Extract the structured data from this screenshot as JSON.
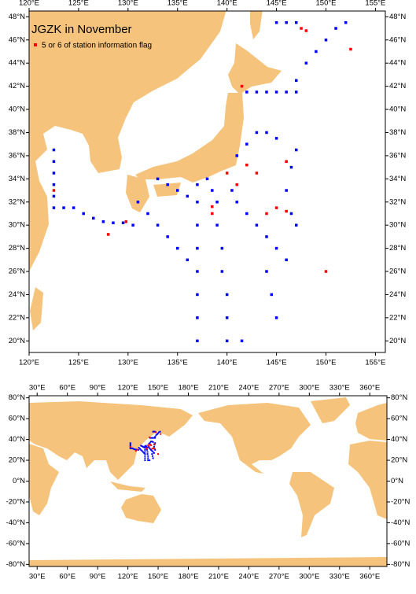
{
  "chart_data": [
    {
      "type": "scatter",
      "title": "JGZK in November",
      "land_color": "#f5c37b",
      "xlim": [
        120,
        156
      ],
      "ylim": [
        19,
        48.5
      ],
      "xticks": [
        {
          "value": 120,
          "label": "120°E"
        },
        {
          "value": 125,
          "label": "125°E"
        },
        {
          "value": 130,
          "label": "130°E"
        },
        {
          "value": 135,
          "label": "135°E"
        },
        {
          "value": 140,
          "label": "140°E"
        },
        {
          "value": 145,
          "label": "145°E"
        },
        {
          "value": 150,
          "label": "150°E"
        },
        {
          "value": 155,
          "label": "155°E"
        }
      ],
      "yticks": [
        {
          "value": 20,
          "label": "20°N"
        },
        {
          "value": 22,
          "label": "22°N"
        },
        {
          "value": 24,
          "label": "24°N"
        },
        {
          "value": 26,
          "label": "26°N"
        },
        {
          "value": 28,
          "label": "28°N"
        },
        {
          "value": 30,
          "label": "30°N"
        },
        {
          "value": 32,
          "label": "32°N"
        },
        {
          "value": 34,
          "label": "34°N"
        },
        {
          "value": 36,
          "label": "36°N"
        },
        {
          "value": 38,
          "label": "38°N"
        },
        {
          "value": 40,
          "label": "40°N"
        },
        {
          "value": 42,
          "label": "42°N"
        },
        {
          "value": 44,
          "label": "44°N"
        },
        {
          "value": 46,
          "label": "46°N"
        },
        {
          "value": 48,
          "label": "48°N"
        }
      ],
      "series": [
        {
          "color": "#0000ff",
          "x": [
            122.5,
            122.5,
            122.5,
            122.5,
            122.5,
            122.5,
            123.5,
            124.5,
            125.5,
            126.5,
            127.5,
            128.5,
            129.5,
            130.5,
            137,
            137,
            137,
            137,
            137,
            137,
            137,
            137,
            138,
            138.5,
            139,
            139,
            139.5,
            139.5,
            140,
            140,
            140,
            140.5,
            141,
            142,
            143,
            144,
            145,
            146,
            147,
            146.5,
            146,
            146.5,
            147,
            142,
            143,
            144,
            145,
            146,
            147,
            147,
            148,
            149,
            150,
            151,
            152,
            131,
            132,
            133,
            134,
            135,
            136,
            133,
            134,
            135,
            136,
            141,
            142,
            143,
            144,
            145,
            145,
            146,
            147,
            144,
            144.5,
            145,
            141.5
          ],
          "y": [
            36.5,
            35.5,
            34.5,
            33.5,
            32.5,
            31.5,
            31.5,
            31.5,
            31,
            30.6,
            30.3,
            30.2,
            30.2,
            30,
            33.5,
            32,
            30,
            28,
            26,
            24,
            22,
            20,
            34,
            33,
            32,
            30,
            28,
            26,
            24,
            22,
            20,
            33,
            32,
            31,
            30,
            29,
            28,
            27,
            36.5,
            35,
            33,
            31,
            30,
            41.5,
            41.5,
            41.5,
            41.5,
            41.5,
            41.5,
            42.5,
            44,
            45,
            46,
            47,
            47.5,
            32,
            31,
            30,
            29,
            28,
            27,
            34,
            33.5,
            33,
            32.5,
            36,
            37,
            38,
            38,
            37.5,
            47.5,
            47.5,
            47.5,
            26,
            24,
            22,
            20
          ]
        },
        {
          "name": "5 or 6 of station information flag",
          "color": "#ff0000",
          "x": [
            122.5,
            128,
            129.8,
            138.5,
            138.5,
            140,
            141,
            143,
            144,
            145,
            146,
            146,
            150,
            152.5,
            147.5,
            148,
            141.5,
            142
          ],
          "y": [
            33,
            29.2,
            30.3,
            31,
            31.6,
            34.5,
            33.5,
            34.5,
            31,
            31.5,
            35.5,
            31.2,
            26,
            45.2,
            47,
            46.8,
            42,
            35.2
          ]
        }
      ]
    },
    {
      "type": "scatter",
      "land_color": "#f5c37b",
      "xlim": [
        22,
        377
      ],
      "ylim": [
        -82,
        82
      ],
      "xticks": [
        {
          "value": 30,
          "label": "30°E"
        },
        {
          "value": 60,
          "label": "60°E"
        },
        {
          "value": 90,
          "label": "90°E"
        },
        {
          "value": 120,
          "label": "120°E"
        },
        {
          "value": 150,
          "label": "150°E"
        },
        {
          "value": 180,
          "label": "180°E"
        },
        {
          "value": 210,
          "label": "210°E"
        },
        {
          "value": 240,
          "label": "240°E"
        },
        {
          "value": 270,
          "label": "270°E"
        },
        {
          "value": 300,
          "label": "300°E"
        },
        {
          "value": 330,
          "label": "330°E"
        },
        {
          "value": 360,
          "label": "360°E"
        }
      ],
      "yticks": [
        {
          "value": -80,
          "label": "-80°N"
        },
        {
          "value": -60,
          "label": "-60°N"
        },
        {
          "value": -40,
          "label": "-40°N"
        },
        {
          "value": -20,
          "label": "-20°N"
        },
        {
          "value": 0,
          "label": "0°N"
        },
        {
          "value": 20,
          "label": "20°N"
        },
        {
          "value": 40,
          "label": "40°N"
        },
        {
          "value": 60,
          "label": "60°N"
        },
        {
          "value": 80,
          "label": "80°N"
        }
      ]
    }
  ]
}
